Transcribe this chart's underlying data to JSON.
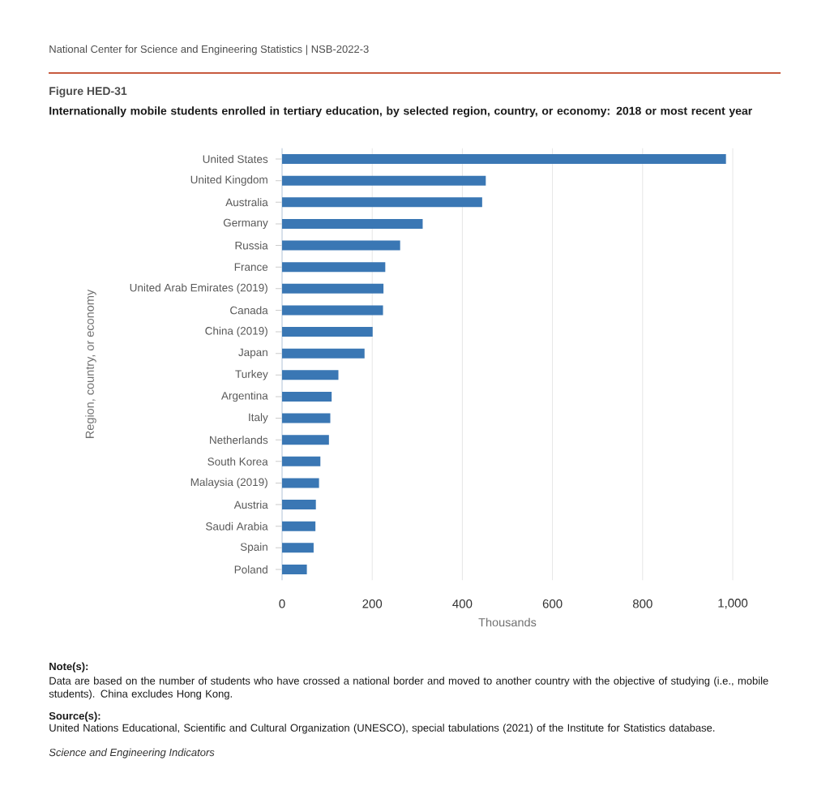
{
  "chart_data": {
    "type": "bar",
    "orientation": "horizontal",
    "title": "Internationally mobile students enrolled in tertiary education, by selected region, country, or economy: 2018 or most recent year",
    "annotations": [
      "National Center for Science and Engineering Statistics  |  NSB-2022-3",
      "Figure HED-31",
      "Note(s):",
      "Data are based on the number of students who have crossed a national border and moved to another country with the objective of studying (i.e., mobile students). China excludes Hong Kong.",
      "Source(s):",
      "United Nations Educational, Scientific and Cultural Organization (UNESCO), special tabulations (2021) of the Institute for Statistics database.",
      "Science and Engineering Indicators"
    ],
    "xlabel": "Thousands",
    "ylabel": "Region, country, or economy",
    "categories": [
      "United States",
      "United Kingdom",
      "Australia",
      "Germany",
      "Russia",
      "France",
      "United Arab Emirates (2019)",
      "Canada",
      "China (2019)",
      "Japan",
      "Turkey",
      "Argentina",
      "Italy",
      "Netherlands",
      "South Korea",
      "Malaysia (2019)",
      "Austria",
      "Saudi Arabia",
      "Spain",
      "Poland"
    ],
    "values": [
      985,
      452,
      444,
      312,
      262,
      229,
      225,
      224,
      201,
      183,
      125,
      110,
      107,
      104,
      85,
      82,
      75,
      74,
      70,
      55
    ],
    "color": "#3a77b4",
    "xlim": [
      0,
      1000
    ],
    "xticks": [
      0,
      200,
      400,
      600,
      800,
      {
        "value": 1000,
        "label": "1,000"
      }
    ],
    "grid": "x"
  }
}
